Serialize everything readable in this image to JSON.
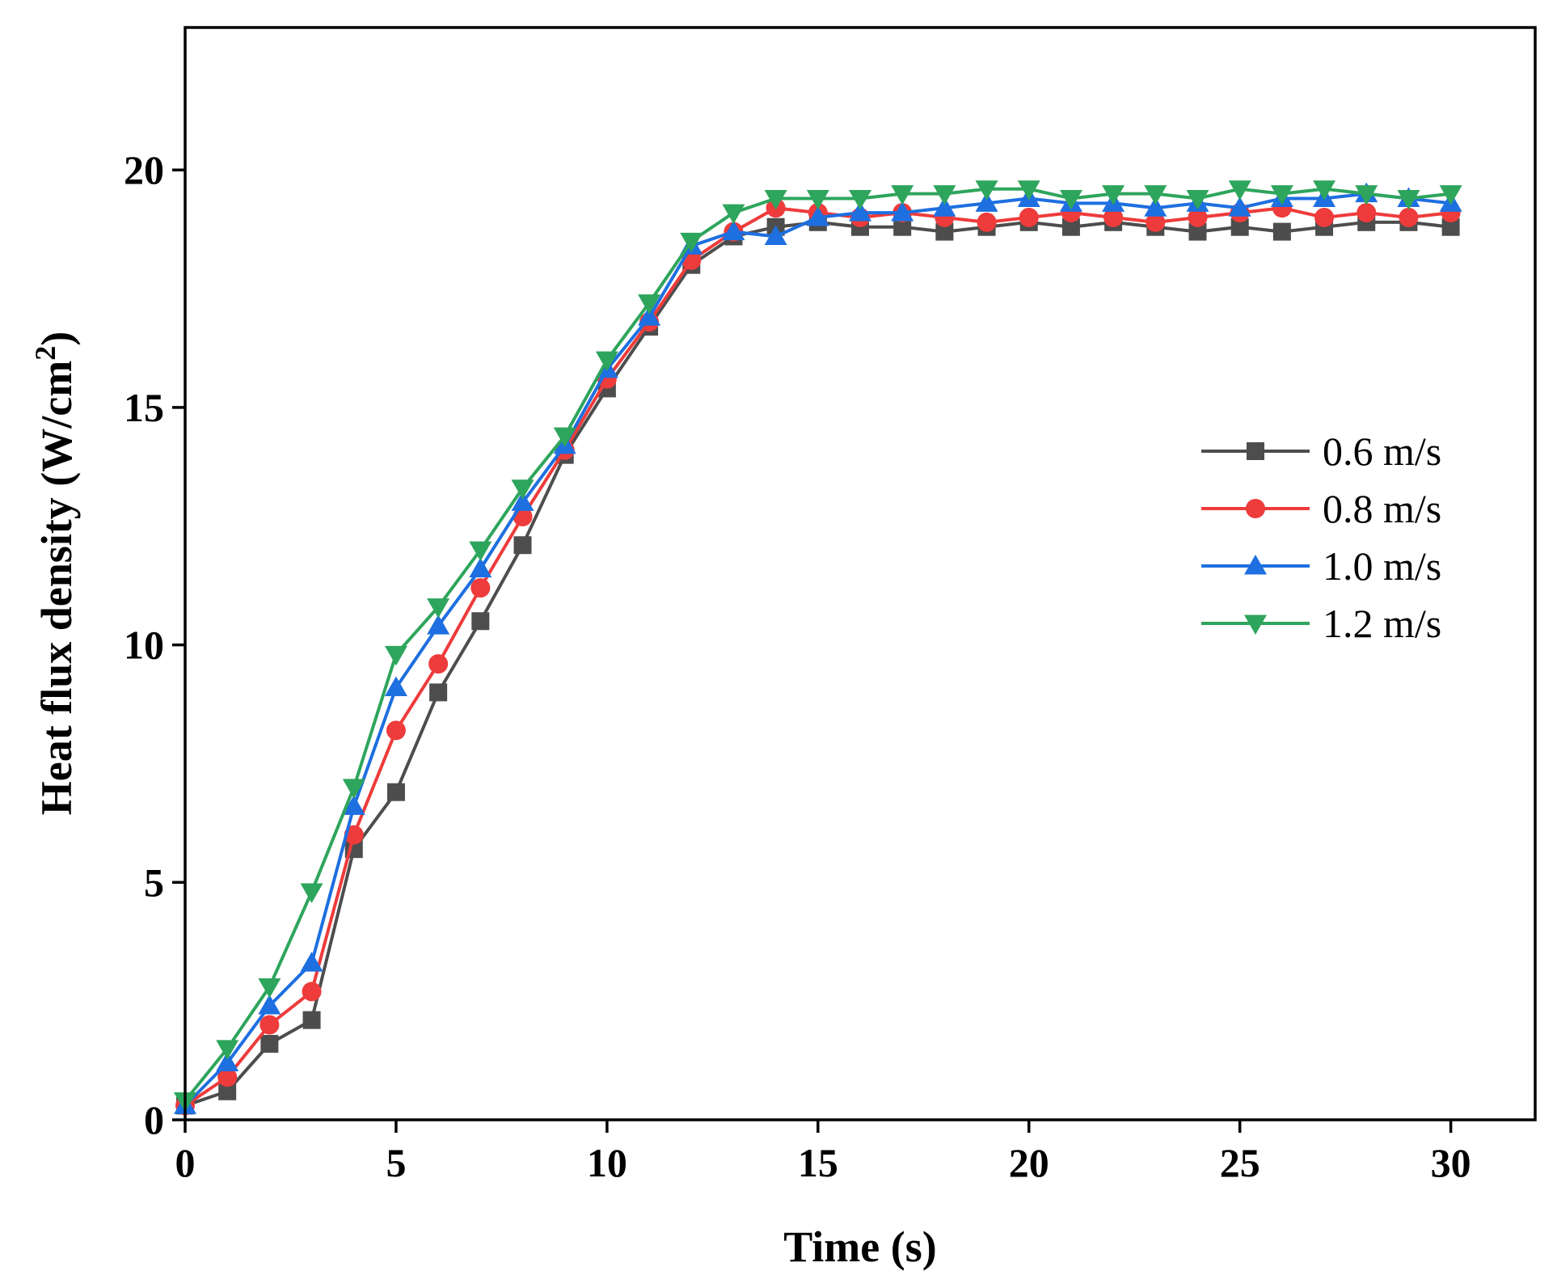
{
  "chart_data": {
    "type": "line",
    "title": "",
    "xlabel": "Time (s)",
    "ylabel": "Heat flux density (W/cm",
    "ylabel_superscript": "2",
    "ylabel_suffix": ")",
    "xlim": [
      0,
      32
    ],
    "ylim": [
      0,
      23
    ],
    "xticks": [
      0,
      5,
      10,
      15,
      20,
      25,
      30
    ],
    "xtick_labels": [
      "0",
      "5",
      "10",
      "15",
      "20",
      "25",
      "30"
    ],
    "yticks": [
      0,
      5,
      10,
      15,
      20
    ],
    "ytick_labels": [
      "0",
      "5",
      "10",
      "15",
      "20"
    ],
    "grid": false,
    "legend_position": "right-middle",
    "x": [
      0,
      1,
      2,
      3,
      4,
      5,
      6,
      7,
      8,
      9,
      10,
      11,
      12,
      13,
      14,
      15,
      16,
      17,
      18,
      19,
      20,
      21,
      22,
      23,
      24,
      25,
      26,
      27,
      28,
      29,
      30
    ],
    "series": [
      {
        "name": "0.6 m/s",
        "color": "#4d4d4d",
        "marker": "square",
        "values": [
          0.3,
          0.6,
          1.6,
          2.1,
          5.7,
          6.9,
          9.0,
          10.5,
          12.1,
          14.0,
          15.4,
          16.7,
          18.0,
          18.6,
          18.8,
          18.9,
          18.8,
          18.8,
          18.7,
          18.8,
          18.9,
          18.8,
          18.9,
          18.8,
          18.7,
          18.8,
          18.7,
          18.8,
          18.9,
          18.9,
          18.8
        ]
      },
      {
        "name": "0.8 m/s",
        "color": "#ee3b3b",
        "marker": "circle",
        "values": [
          0.3,
          0.9,
          2.0,
          2.7,
          6.0,
          8.2,
          9.6,
          11.2,
          12.7,
          14.1,
          15.6,
          16.8,
          18.1,
          18.7,
          19.2,
          19.1,
          19.0,
          19.1,
          19.0,
          18.9,
          19.0,
          19.1,
          19.0,
          18.9,
          19.0,
          19.1,
          19.2,
          19.0,
          19.1,
          19.0,
          19.1
        ]
      },
      {
        "name": "1.0 m/s",
        "color": "#1e6fe0",
        "marker": "triangle-up",
        "values": [
          0.3,
          1.2,
          2.4,
          3.3,
          6.6,
          9.1,
          10.4,
          11.6,
          13.0,
          14.2,
          15.8,
          16.9,
          18.4,
          18.7,
          18.6,
          19.0,
          19.1,
          19.1,
          19.2,
          19.3,
          19.4,
          19.3,
          19.3,
          19.2,
          19.3,
          19.2,
          19.4,
          19.4,
          19.5,
          19.4,
          19.3
        ]
      },
      {
        "name": "1.2 m/s",
        "color": "#2ea55c",
        "marker": "triangle-down",
        "values": [
          0.4,
          1.5,
          2.8,
          4.8,
          7.0,
          9.8,
          10.8,
          12.0,
          13.3,
          14.4,
          16.0,
          17.2,
          18.5,
          19.1,
          19.4,
          19.4,
          19.4,
          19.5,
          19.5,
          19.6,
          19.6,
          19.4,
          19.5,
          19.5,
          19.4,
          19.6,
          19.5,
          19.6,
          19.5,
          19.4,
          19.5
        ]
      }
    ]
  }
}
